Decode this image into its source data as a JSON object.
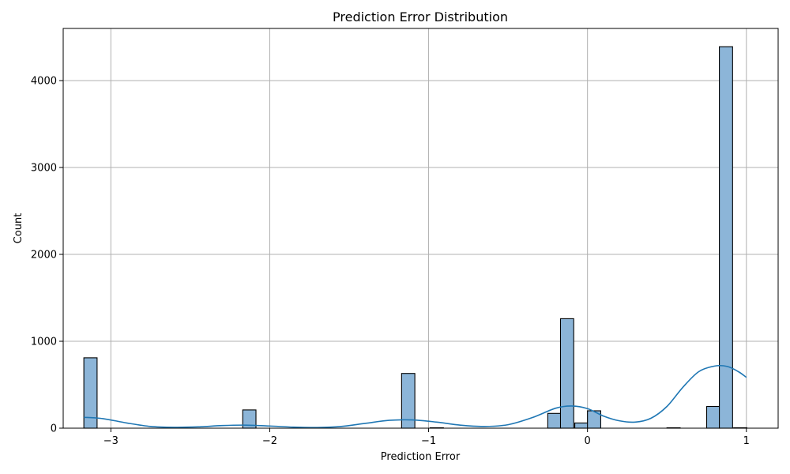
{
  "chart_data": {
    "type": "bar",
    "title": "Prediction Error Distribution",
    "xlabel": "Prediction Error",
    "ylabel": "Count",
    "xlim": [
      -3.3,
      1.2
    ],
    "ylim": [
      0,
      4600
    ],
    "grid": true,
    "x_ticks": [
      -3,
      -2,
      -1,
      0,
      1
    ],
    "x_tick_labels": [
      "−3",
      "−2",
      "−1",
      "0",
      "1"
    ],
    "y_ticks": [
      0,
      1000,
      2000,
      3000,
      4000
    ],
    "y_tick_labels": [
      "0",
      "1000",
      "2000",
      "3000",
      "4000"
    ],
    "bin_width": 0.0833,
    "bins": [
      {
        "x0": -3.17,
        "count": 810
      },
      {
        "x0": -2.17,
        "count": 210
      },
      {
        "x0": -1.17,
        "count": 630
      },
      {
        "x0": -0.99,
        "count": 5
      },
      {
        "x0": -0.25,
        "count": 170
      },
      {
        "x0": -0.17,
        "count": 1260
      },
      {
        "x0": -0.08,
        "count": 60
      },
      {
        "x0": 0.0,
        "count": 200
      },
      {
        "x0": 0.5,
        "count": 5
      },
      {
        "x0": 0.75,
        "count": 250
      },
      {
        "x0": 0.83,
        "count": 4390
      },
      {
        "x0": 0.92,
        "count": 5
      }
    ],
    "kde": {
      "color": "#1f77b4",
      "x": [
        -3.17,
        -3.05,
        -2.9,
        -2.75,
        -2.6,
        -2.45,
        -2.3,
        -2.15,
        -2.0,
        -1.85,
        -1.7,
        -1.55,
        -1.4,
        -1.25,
        -1.1,
        -0.95,
        -0.8,
        -0.65,
        -0.5,
        -0.35,
        -0.2,
        -0.1,
        0.0,
        0.1,
        0.2,
        0.3,
        0.4,
        0.5,
        0.6,
        0.7,
        0.8,
        0.88,
        0.95,
        1.0
      ],
      "y": [
        125,
        110,
        60,
        20,
        10,
        15,
        30,
        35,
        25,
        12,
        8,
        20,
        55,
        90,
        95,
        70,
        35,
        20,
        40,
        120,
        230,
        255,
        225,
        140,
        85,
        70,
        115,
        250,
        470,
        650,
        715,
        710,
        650,
        585
      ]
    },
    "bar_color": "#8cb5d8"
  }
}
